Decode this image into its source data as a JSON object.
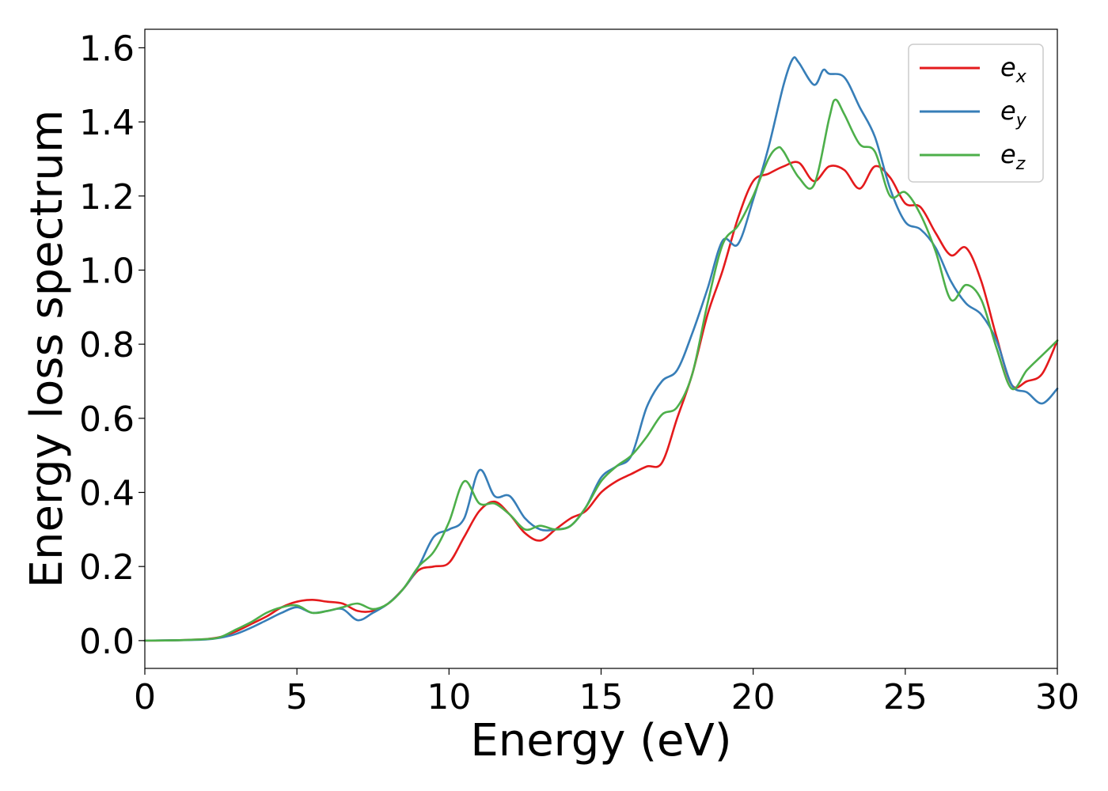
{
  "chart_data": {
    "type": "line",
    "title": "",
    "xlabel": "Energy (eV)",
    "ylabel": "Energy loss spectrum",
    "xlim": [
      0,
      30
    ],
    "ylim": [
      -0.075,
      1.65
    ],
    "xticks": [
      "0",
      "5",
      "10",
      "15",
      "20",
      "25",
      "30"
    ],
    "yticks": [
      "0.0",
      "0.2",
      "0.4",
      "0.6",
      "0.8",
      "1.0",
      "1.2",
      "1.4",
      "1.6"
    ],
    "grid": false,
    "legend_position": "top-right",
    "series": [
      {
        "name": "e_x",
        "label_main": "e",
        "label_sub": "x",
        "color": "#e41a1c",
        "x": [
          0,
          1,
          2,
          2.5,
          3,
          3.5,
          4,
          4.5,
          5,
          5.5,
          6,
          6.5,
          7,
          7.5,
          8,
          8.5,
          9,
          9.5,
          10,
          10.5,
          11,
          11.5,
          12,
          12.5,
          13,
          13.5,
          14,
          14.5,
          15,
          15.5,
          16,
          16.5,
          17,
          17.5,
          18,
          18.5,
          19,
          19.5,
          20,
          20.5,
          21,
          21.5,
          22,
          22.5,
          23,
          23.5,
          24,
          24.5,
          25,
          25.5,
          26,
          26.5,
          27,
          27.5,
          28,
          28.5,
          29,
          29.5,
          30
        ],
        "y": [
          0,
          0.001,
          0.004,
          0.01,
          0.025,
          0.045,
          0.065,
          0.09,
          0.105,
          0.11,
          0.105,
          0.1,
          0.08,
          0.08,
          0.1,
          0.14,
          0.19,
          0.2,
          0.21,
          0.28,
          0.35,
          0.375,
          0.34,
          0.29,
          0.27,
          0.3,
          0.33,
          0.35,
          0.4,
          0.43,
          0.45,
          0.47,
          0.48,
          0.6,
          0.72,
          0.88,
          1.0,
          1.14,
          1.24,
          1.26,
          1.28,
          1.29,
          1.24,
          1.28,
          1.27,
          1.22,
          1.28,
          1.25,
          1.18,
          1.17,
          1.1,
          1.04,
          1.06,
          0.97,
          0.82,
          0.69,
          0.7,
          0.72,
          0.81
        ]
      },
      {
        "name": "e_y",
        "label_main": "e",
        "label_sub": "y",
        "color": "#377eb8",
        "x": [
          0,
          1,
          2,
          2.5,
          3,
          3.5,
          4,
          4.5,
          5,
          5.5,
          6,
          6.5,
          7,
          7.5,
          8,
          8.5,
          9,
          9.5,
          10,
          10.5,
          11,
          11.5,
          12,
          12.5,
          13,
          13.5,
          14,
          14.5,
          15,
          15.5,
          16,
          16.5,
          17,
          17.5,
          18,
          18.5,
          19,
          19.5,
          20,
          20.5,
          21,
          21.3,
          21.5,
          22,
          22.3,
          22.5,
          23,
          23.5,
          24,
          24.5,
          25,
          25.5,
          26,
          26.5,
          27,
          27.5,
          28,
          28.5,
          29,
          29.5,
          30
        ],
        "y": [
          0,
          0.001,
          0.003,
          0.008,
          0.018,
          0.035,
          0.055,
          0.075,
          0.09,
          0.075,
          0.08,
          0.085,
          0.055,
          0.075,
          0.1,
          0.14,
          0.2,
          0.28,
          0.3,
          0.33,
          0.46,
          0.39,
          0.39,
          0.33,
          0.3,
          0.3,
          0.31,
          0.36,
          0.44,
          0.47,
          0.5,
          0.63,
          0.7,
          0.73,
          0.83,
          0.95,
          1.08,
          1.07,
          1.19,
          1.33,
          1.5,
          1.57,
          1.56,
          1.5,
          1.54,
          1.53,
          1.52,
          1.44,
          1.36,
          1.22,
          1.13,
          1.11,
          1.06,
          0.97,
          0.91,
          0.88,
          0.81,
          0.69,
          0.67,
          0.64,
          0.68
        ]
      },
      {
        "name": "e_z",
        "label_main": "e",
        "label_sub": "z",
        "color": "#4daf4a",
        "x": [
          0,
          1,
          2,
          2.5,
          3,
          3.5,
          4,
          4.5,
          5,
          5.5,
          6,
          6.5,
          7,
          7.5,
          8,
          8.5,
          9,
          9.5,
          10,
          10.5,
          11,
          11.5,
          12,
          12.5,
          13,
          13.5,
          14,
          14.5,
          15,
          15.5,
          16,
          16.5,
          17,
          17.5,
          18,
          18.5,
          19,
          19.5,
          20,
          20.5,
          20.8,
          21,
          21.5,
          22,
          22.5,
          22.7,
          23,
          23.5,
          24,
          24.5,
          25,
          25.5,
          26,
          26.5,
          27,
          27.5,
          28,
          28.5,
          29,
          29.5,
          30
        ],
        "y": [
          0,
          0.001,
          0.004,
          0.01,
          0.03,
          0.05,
          0.075,
          0.09,
          0.095,
          0.075,
          0.08,
          0.09,
          0.1,
          0.085,
          0.1,
          0.14,
          0.2,
          0.24,
          0.32,
          0.43,
          0.37,
          0.37,
          0.34,
          0.3,
          0.31,
          0.3,
          0.31,
          0.36,
          0.43,
          0.47,
          0.5,
          0.55,
          0.61,
          0.63,
          0.72,
          0.91,
          1.07,
          1.12,
          1.2,
          1.3,
          1.33,
          1.32,
          1.25,
          1.23,
          1.41,
          1.46,
          1.42,
          1.34,
          1.32,
          1.2,
          1.21,
          1.15,
          1.05,
          0.92,
          0.96,
          0.92,
          0.79,
          0.68,
          0.73,
          0.77,
          0.81
        ]
      }
    ]
  }
}
